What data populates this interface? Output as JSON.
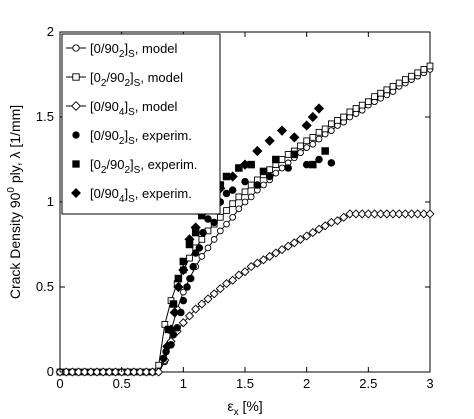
{
  "chart_data": {
    "type": "scatter",
    "title": "",
    "xlabel": "εx [%]",
    "xlabel_main": "ε",
    "xlabel_sub": "x",
    "xlabel_unit": " [%]",
    "ylabel": "Crack Density 90° ply, λ [1/mm]",
    "ylabel_pre": "Crack Density 90",
    "ylabel_sup": "0",
    "ylabel_post": " ply, λ [1/mm]",
    "xlim": [
      0,
      3
    ],
    "ylim": [
      0,
      2
    ],
    "xticks": [
      0,
      0.5,
      1,
      1.5,
      2,
      2.5,
      3
    ],
    "xtick_labels": [
      "0",
      "0.5",
      "1",
      "1.5",
      "2",
      "2.5",
      "3"
    ],
    "yticks": [
      0,
      0.5,
      1,
      1.5,
      2
    ],
    "ytick_labels": [
      "0",
      "0.5",
      "1",
      "1.5",
      "2"
    ],
    "grid": false,
    "legend_position": "top-left",
    "legend": [
      {
        "base": "[0/90",
        "sub": "2",
        "close": "]",
        "sub2": "S",
        "suffix": ", model",
        "marker": "circle-open"
      },
      {
        "base": "[0",
        "sub": "2",
        "mid": "/90",
        "sub_b": "2",
        "close": "]",
        "sub2": "S",
        "suffix": ", model",
        "marker": "square-open"
      },
      {
        "base": "[0/90",
        "sub": "4",
        "close": "]",
        "sub2": "S",
        "suffix": ", model",
        "marker": "diamond-open"
      },
      {
        "base": "[0/90",
        "sub": "2",
        "close": "]",
        "sub2": "S",
        "suffix": ", experim.",
        "marker": "circle-filled"
      },
      {
        "base": "[0",
        "sub": "2",
        "mid": "/90",
        "sub_b": "2",
        "close": "]",
        "sub2": "S",
        "suffix": ", experim.",
        "marker": "square-filled"
      },
      {
        "base": "[0/90",
        "sub": "4",
        "close": "]",
        "sub2": "S",
        "suffix": ", experim.",
        "marker": "diamond-filled"
      }
    ],
    "series": [
      {
        "name": "[0/90_2]_S, model",
        "marker": "circle-open",
        "x": [
          0,
          0.05,
          0.1,
          0.15,
          0.2,
          0.25,
          0.3,
          0.35,
          0.4,
          0.45,
          0.5,
          0.55,
          0.6,
          0.65,
          0.7,
          0.75,
          0.8,
          0.85,
          0.9,
          0.95,
          1.0,
          1.05,
          1.1,
          1.15,
          1.2,
          1.25,
          1.3,
          1.35,
          1.4,
          1.45,
          1.5,
          1.55,
          1.6,
          1.65,
          1.7,
          1.75,
          1.8,
          1.85,
          1.9,
          1.95,
          2.0,
          2.05,
          2.1,
          2.15,
          2.2,
          2.25,
          2.3,
          2.35,
          2.4,
          2.45,
          2.5,
          2.55,
          2.6,
          2.65,
          2.7,
          2.75,
          2.8,
          2.85,
          2.9,
          2.95,
          3.0
        ],
        "y": [
          0,
          0,
          0,
          0,
          0,
          0,
          0,
          0,
          0,
          0,
          0,
          0,
          0,
          0,
          0,
          0,
          0,
          0.06,
          0.24,
          0.37,
          0.47,
          0.55,
          0.62,
          0.68,
          0.73,
          0.78,
          0.83,
          0.87,
          0.91,
          0.96,
          1.0,
          1.03,
          1.07,
          1.1,
          1.13,
          1.17,
          1.2,
          1.23,
          1.26,
          1.29,
          1.32,
          1.34,
          1.37,
          1.4,
          1.42,
          1.45,
          1.47,
          1.5,
          1.52,
          1.54,
          1.57,
          1.59,
          1.61,
          1.63,
          1.65,
          1.68,
          1.7,
          1.72,
          1.74,
          1.76,
          1.78
        ]
      },
      {
        "name": "[0_2/90_2]_S, model",
        "marker": "square-open",
        "x": [
          0,
          0.05,
          0.1,
          0.15,
          0.2,
          0.25,
          0.3,
          0.35,
          0.4,
          0.45,
          0.5,
          0.55,
          0.6,
          0.65,
          0.7,
          0.75,
          0.8,
          0.85,
          0.9,
          0.95,
          1.0,
          1.05,
          1.1,
          1.15,
          1.2,
          1.25,
          1.3,
          1.35,
          1.4,
          1.45,
          1.5,
          1.55,
          1.6,
          1.65,
          1.7,
          1.75,
          1.8,
          1.85,
          1.9,
          1.95,
          2.0,
          2.05,
          2.1,
          2.15,
          2.2,
          2.25,
          2.3,
          2.35,
          2.4,
          2.45,
          2.5,
          2.55,
          2.6,
          2.65,
          2.7,
          2.75,
          2.8,
          2.85,
          2.9,
          2.95,
          3.0
        ],
        "y": [
          0,
          0,
          0,
          0,
          0,
          0,
          0,
          0,
          0,
          0,
          0,
          0,
          0,
          0,
          0,
          0,
          0.04,
          0.28,
          0.42,
          0.52,
          0.6,
          0.67,
          0.73,
          0.78,
          0.83,
          0.87,
          0.91,
          0.95,
          0.99,
          1.03,
          1.06,
          1.1,
          1.13,
          1.16,
          1.19,
          1.22,
          1.25,
          1.28,
          1.3,
          1.33,
          1.36,
          1.38,
          1.41,
          1.43,
          1.46,
          1.48,
          1.5,
          1.53,
          1.55,
          1.57,
          1.59,
          1.62,
          1.64,
          1.66,
          1.68,
          1.7,
          1.72,
          1.74,
          1.76,
          1.78,
          1.8
        ]
      },
      {
        "name": "[0/90_4]_S, model",
        "marker": "diamond-open",
        "x": [
          0,
          0.05,
          0.1,
          0.15,
          0.2,
          0.25,
          0.3,
          0.35,
          0.4,
          0.45,
          0.5,
          0.55,
          0.6,
          0.65,
          0.7,
          0.75,
          0.8,
          0.85,
          0.9,
          0.95,
          1.0,
          1.05,
          1.1,
          1.15,
          1.2,
          1.25,
          1.3,
          1.35,
          1.4,
          1.45,
          1.5,
          1.55,
          1.6,
          1.65,
          1.7,
          1.75,
          1.8,
          1.85,
          1.9,
          1.95,
          2.0,
          2.05,
          2.1,
          2.15,
          2.2,
          2.25,
          2.3,
          2.35,
          2.4,
          2.45,
          2.5,
          2.55,
          2.6,
          2.65,
          2.7,
          2.75,
          2.8,
          2.85,
          2.9,
          2.95,
          3.0
        ],
        "y": [
          0,
          0,
          0,
          0,
          0,
          0,
          0,
          0,
          0,
          0,
          0,
          0,
          0,
          0,
          0,
          0,
          0,
          0.07,
          0.18,
          0.24,
          0.29,
          0.33,
          0.37,
          0.4,
          0.43,
          0.46,
          0.49,
          0.52,
          0.54,
          0.57,
          0.59,
          0.62,
          0.64,
          0.66,
          0.68,
          0.7,
          0.72,
          0.74,
          0.76,
          0.78,
          0.8,
          0.82,
          0.84,
          0.86,
          0.88,
          0.89,
          0.91,
          0.93,
          0.93,
          0.93,
          0.93,
          0.93,
          0.93,
          0.93,
          0.93,
          0.93,
          0.93,
          0.93,
          0.93,
          0.93,
          0.93
        ]
      },
      {
        "name": "[0/90_2]_S, experim.",
        "marker": "circle-filled",
        "x": [
          0.84,
          0.86,
          0.9,
          0.92,
          0.95,
          0.98,
          1.0,
          1.03,
          1.06,
          1.08,
          1.1,
          1.13,
          1.16,
          1.2,
          1.25,
          1.3,
          1.35,
          1.4,
          1.5,
          1.6,
          1.7,
          1.85,
          2.0,
          2.1,
          2.2
        ],
        "y": [
          0.08,
          0.12,
          0.16,
          0.22,
          0.26,
          0.35,
          0.42,
          0.5,
          0.55,
          0.62,
          0.7,
          0.73,
          0.82,
          0.9,
          0.88,
          1.0,
          1.05,
          1.07,
          1.12,
          1.1,
          1.15,
          1.2,
          1.22,
          1.25,
          1.23
        ]
      },
      {
        "name": "[0_2/90_2]_S, experim.",
        "marker": "square-filled",
        "x": [
          0.88,
          0.92,
          0.96,
          1.0,
          1.05,
          1.1,
          1.15,
          1.2,
          1.25,
          1.3,
          1.35,
          1.45,
          1.55,
          1.65,
          1.75,
          1.9,
          2.05,
          2.15
        ],
        "y": [
          0.25,
          0.4,
          0.55,
          0.65,
          0.75,
          0.82,
          0.92,
          0.98,
          1.05,
          1.1,
          1.15,
          1.2,
          1.22,
          1.18,
          1.25,
          1.28,
          1.22,
          1.3
        ]
      },
      {
        "name": "[0/90_4]_S, experim.",
        "marker": "diamond-filled",
        "x": [
          0.87,
          0.9,
          0.93,
          0.96,
          1.0,
          1.05,
          1.1,
          1.15,
          1.2,
          1.3,
          1.4,
          1.5,
          1.6,
          1.7,
          1.8,
          1.9,
          2.0,
          2.05,
          2.1
        ],
        "y": [
          0.15,
          0.25,
          0.35,
          0.5,
          0.6,
          0.78,
          0.85,
          0.93,
          1.0,
          1.08,
          1.15,
          1.22,
          1.3,
          1.36,
          1.42,
          1.38,
          1.45,
          1.5,
          1.55
        ]
      }
    ]
  }
}
